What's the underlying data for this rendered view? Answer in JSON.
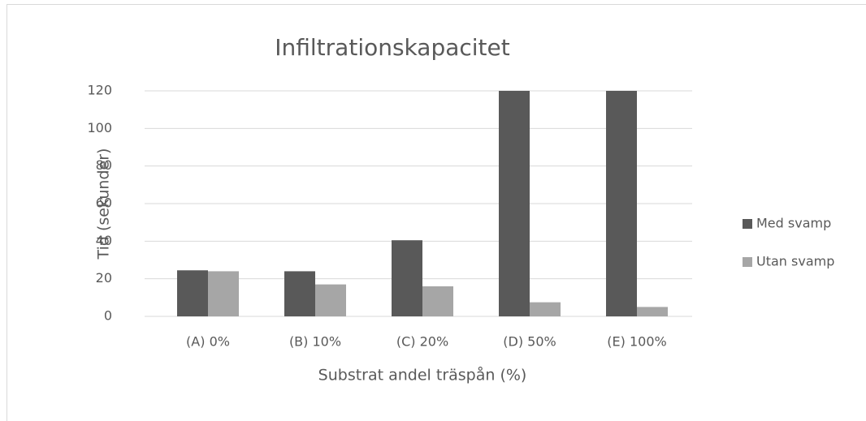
{
  "chart_data": {
    "type": "bar",
    "title": "Infiltrationskapacitet",
    "x_label": "Substrat andel träspån (%)",
    "y_label": "Tid (sekunder)",
    "categories": [
      "(A) 0%",
      "(B) 10%",
      "(C) 20%",
      "(D) 50%",
      "(E) 100%"
    ],
    "series": [
      {
        "name": "Med svamp",
        "color": "#595959",
        "values": [
          24.5,
          24,
          40.5,
          120,
          120
        ]
      },
      {
        "name": "Utan svamp",
        "color": "#a6a6a6",
        "values": [
          24,
          17,
          16,
          7.5,
          5
        ]
      }
    ],
    "ylim": [
      0,
      120
    ],
    "yticks": [
      0,
      20,
      40,
      60,
      80,
      100,
      120
    ],
    "grid": true,
    "legend": "right"
  }
}
